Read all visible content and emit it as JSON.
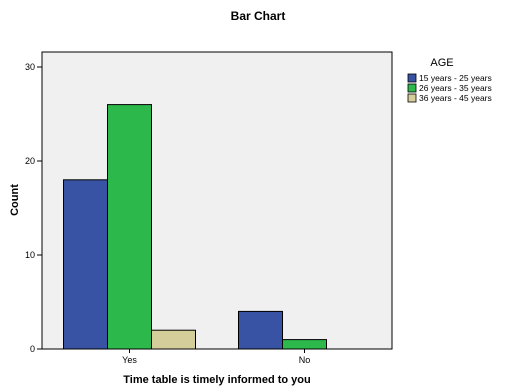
{
  "chart_data": {
    "type": "bar",
    "title": "Bar Chart",
    "xlabel": "Time table is timely informed to you",
    "ylabel": "Count",
    "categories": [
      "Yes",
      "No"
    ],
    "series": [
      {
        "name": "15 years - 25 years",
        "values": [
          18,
          4
        ]
      },
      {
        "name": "26 years - 35 years",
        "values": [
          26,
          1
        ]
      },
      {
        "name": "36 years - 45 years",
        "values": [
          2,
          0
        ]
      }
    ],
    "ylim": [
      0,
      30
    ],
    "yticks": [
      0,
      10,
      20,
      30
    ],
    "legend": {
      "title": "AGE",
      "placement": "right"
    },
    "grid": false,
    "colors": [
      "#3953a4",
      "#2db84b",
      "#d4cf9a"
    ],
    "plot_background": "#f0f0f0"
  }
}
